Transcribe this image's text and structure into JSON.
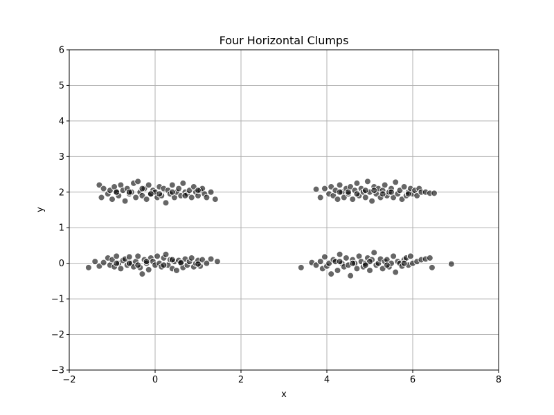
{
  "chart_data": {
    "type": "scatter",
    "title": "Four Horizontal Clumps",
    "xlabel": "x",
    "ylabel": "y",
    "xlim": [
      -2,
      8
    ],
    "ylim": [
      -3,
      6
    ],
    "xticks": [
      -2,
      0,
      2,
      4,
      6,
      8
    ],
    "yticks": [
      -3,
      -2,
      -1,
      0,
      1,
      2,
      3,
      4,
      5,
      6
    ],
    "xtick_labels": [
      "−2",
      "0",
      "2",
      "4",
      "6",
      "8"
    ],
    "ytick_labels": [
      "−3",
      "−2",
      "−1",
      "0",
      "1",
      "2",
      "3",
      "4",
      "5",
      "6"
    ],
    "grid": true,
    "marker_color": "#000000",
    "marker_edge_color": "#ffffff",
    "clusters": [
      {
        "center": [
          0,
          2
        ],
        "x": [
          -1.3,
          -1.25,
          -1.2,
          -1.1,
          -1.05,
          -1.0,
          -0.95,
          -0.9,
          -0.85,
          -0.8,
          -0.75,
          -0.7,
          -0.65,
          -0.6,
          -0.55,
          -0.5,
          -0.45,
          -0.4,
          -0.35,
          -0.3,
          -0.25,
          -0.2,
          -0.15,
          -0.1,
          -0.05,
          0.0,
          0.05,
          0.1,
          0.15,
          0.2,
          0.25,
          0.3,
          0.35,
          0.4,
          0.45,
          0.5,
          0.55,
          0.6,
          0.65,
          0.7,
          0.75,
          0.8,
          0.85,
          0.9,
          0.95,
          1.0,
          1.05,
          1.1,
          1.15,
          1.2,
          1.3,
          1.4,
          -0.6,
          -0.3,
          0.1,
          0.4,
          0.7,
          1.0,
          -0.9,
          -0.1
        ],
        "y": [
          2.2,
          1.85,
          2.1,
          1.95,
          2.05,
          1.8,
          2.15,
          2.0,
          1.9,
          2.2,
          2.05,
          1.75,
          2.1,
          1.95,
          2.0,
          2.25,
          1.85,
          2.3,
          2.0,
          1.9,
          2.1,
          1.8,
          2.2,
          1.95,
          2.05,
          2.0,
          1.85,
          2.15,
          1.9,
          2.1,
          1.7,
          2.05,
          1.95,
          2.2,
          1.85,
          2.0,
          2.1,
          1.9,
          2.25,
          2.0,
          1.95,
          2.05,
          1.85,
          2.15,
          2.0,
          1.9,
          2.05,
          2.1,
          1.95,
          1.85,
          2.0,
          1.8,
          2.0,
          2.1,
          1.95,
          2.0,
          1.9,
          2.05,
          2.0,
          1.95
        ]
      },
      {
        "center": [
          0,
          0
        ],
        "x": [
          -1.55,
          -1.4,
          -1.3,
          -1.2,
          -1.1,
          -1.05,
          -1.0,
          -0.95,
          -0.9,
          -0.85,
          -0.8,
          -0.75,
          -0.7,
          -0.65,
          -0.6,
          -0.55,
          -0.5,
          -0.45,
          -0.4,
          -0.35,
          -0.3,
          -0.25,
          -0.2,
          -0.15,
          -0.1,
          -0.05,
          0.0,
          0.05,
          0.1,
          0.15,
          0.2,
          0.25,
          0.3,
          0.35,
          0.4,
          0.45,
          0.5,
          0.55,
          0.6,
          0.65,
          0.7,
          0.75,
          0.8,
          0.85,
          0.9,
          0.95,
          1.0,
          1.05,
          1.1,
          1.2,
          1.3,
          1.45,
          -0.6,
          -0.2,
          0.2,
          0.6,
          1.0,
          -0.9,
          0.4,
          -0.4
        ],
        "y": [
          -0.12,
          0.05,
          -0.08,
          0.02,
          0.15,
          -0.05,
          0.1,
          -0.1,
          0.2,
          0.0,
          -0.15,
          0.08,
          0.12,
          -0.05,
          0.18,
          0.0,
          -0.1,
          0.05,
          0.2,
          -0.12,
          -0.3,
          0.1,
          0.0,
          -0.18,
          0.15,
          0.05,
          -0.05,
          0.2,
          0.0,
          -0.1,
          0.15,
          0.25,
          -0.05,
          0.1,
          -0.15,
          0.05,
          -0.2,
          0.08,
          0.0,
          -0.12,
          0.12,
          -0.05,
          0.05,
          0.15,
          -0.1,
          0.0,
          0.08,
          -0.08,
          0.1,
          0.0,
          0.12,
          0.05,
          0.0,
          0.05,
          -0.05,
          0.02,
          -0.02,
          0.0,
          0.1,
          -0.05
        ]
      },
      {
        "center": [
          5,
          2
        ],
        "x": [
          3.75,
          3.85,
          3.95,
          4.05,
          4.1,
          4.15,
          4.2,
          4.25,
          4.3,
          4.35,
          4.4,
          4.45,
          4.5,
          4.55,
          4.6,
          4.65,
          4.7,
          4.75,
          4.8,
          4.85,
          4.9,
          4.95,
          5.0,
          5.05,
          5.1,
          5.15,
          5.2,
          5.25,
          5.3,
          5.35,
          5.4,
          5.45,
          5.5,
          5.55,
          5.6,
          5.65,
          5.7,
          5.75,
          5.8,
          5.85,
          5.9,
          5.95,
          6.0,
          6.05,
          6.1,
          6.15,
          6.2,
          6.3,
          6.4,
          6.5,
          4.3,
          4.7,
          5.1,
          5.5,
          5.9,
          4.5,
          4.9,
          5.3
        ],
        "y": [
          2.08,
          1.85,
          2.1,
          1.95,
          2.15,
          1.9,
          2.05,
          1.8,
          2.2,
          2.0,
          1.85,
          2.1,
          1.95,
          2.15,
          1.8,
          2.05,
          2.25,
          1.9,
          2.1,
          2.0,
          1.85,
          2.3,
          2.0,
          1.75,
          2.15,
          1.95,
          2.1,
          1.85,
          2.05,
          2.2,
          1.9,
          2.0,
          2.1,
          1.85,
          2.28,
          1.95,
          2.05,
          1.8,
          2.15,
          1.9,
          2.0,
          2.1,
          1.95,
          2.05,
          1.9,
          2.1,
          2.0,
          2.0,
          1.97,
          1.97,
          2.0,
          1.95,
          2.05,
          2.0,
          1.95,
          2.0,
          2.05,
          1.95
        ]
      },
      {
        "center": [
          5,
          0
        ],
        "x": [
          3.4,
          3.65,
          3.75,
          3.85,
          3.9,
          3.95,
          4.0,
          4.05,
          4.1,
          4.15,
          4.2,
          4.25,
          4.3,
          4.35,
          4.4,
          4.45,
          4.5,
          4.55,
          4.6,
          4.65,
          4.7,
          4.75,
          4.8,
          4.85,
          4.9,
          4.95,
          5.0,
          5.05,
          5.1,
          5.15,
          5.2,
          5.25,
          5.3,
          5.35,
          5.4,
          5.45,
          5.5,
          5.55,
          5.6,
          5.65,
          5.7,
          5.75,
          5.8,
          5.85,
          5.9,
          5.95,
          6.0,
          6.1,
          6.2,
          6.3,
          6.4,
          6.45,
          6.9,
          4.6,
          5.0,
          5.4,
          5.8,
          4.3,
          4.9
        ],
        "y": [
          -0.12,
          0.02,
          -0.05,
          0.05,
          -0.15,
          0.18,
          -0.08,
          0.0,
          -0.3,
          0.1,
          0.05,
          -0.2,
          0.25,
          0.0,
          -0.1,
          0.15,
          -0.05,
          -0.35,
          0.1,
          0.0,
          -0.15,
          0.2,
          0.05,
          -0.1,
          0.0,
          0.15,
          -0.2,
          0.1,
          0.3,
          -0.05,
          0.0,
          0.12,
          -0.15,
          0.05,
          0.1,
          -0.1,
          0.0,
          0.2,
          -0.25,
          0.05,
          0.0,
          -0.08,
          0.1,
          0.15,
          -0.05,
          0.2,
          0.0,
          0.05,
          0.1,
          0.12,
          0.15,
          -0.12,
          -0.02,
          0.0,
          0.05,
          -0.05,
          0.0,
          0.05,
          -0.05
        ]
      }
    ]
  }
}
